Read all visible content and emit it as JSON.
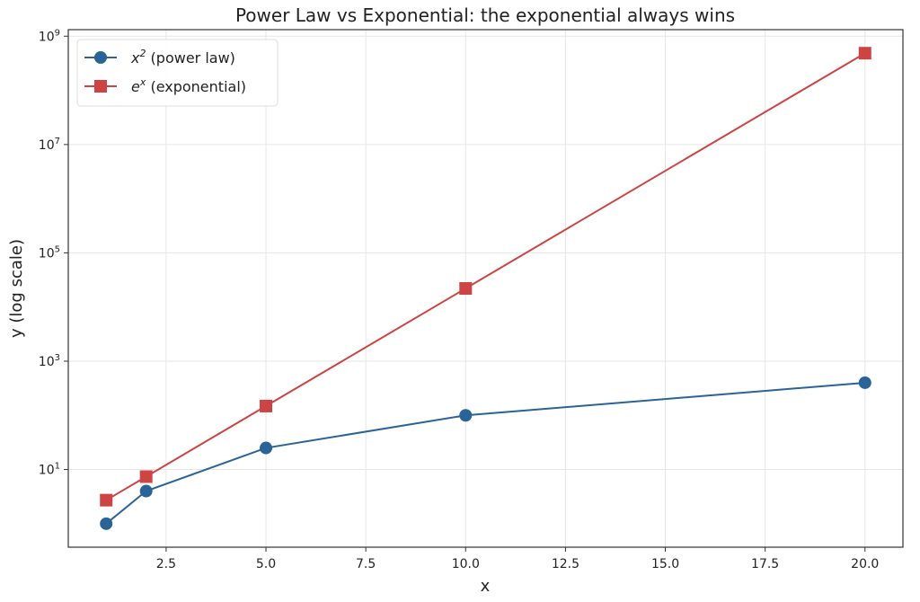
{
  "chart_data": {
    "type": "line",
    "title": "Power Law vs Exponential: the exponential always wins",
    "xlabel": "x",
    "ylabel": "y  (log scale)",
    "x": [
      1,
      2,
      5,
      10,
      20
    ],
    "series": [
      {
        "name_base": "x",
        "name_sup": "2",
        "name_rest": " (power law)",
        "values": [
          1,
          4,
          25,
          100,
          400
        ],
        "color": "#2a6398",
        "marker": "circle"
      },
      {
        "name_base": "e",
        "name_sup": "x",
        "name_rest": " (exponential)",
        "values": [
          2.718,
          7.389,
          148.4,
          22026.5,
          485165195
        ],
        "color": "#cc4444",
        "marker": "square"
      }
    ],
    "xlim": [
      0.05,
      20.95
    ],
    "ylim": [
      0.368,
      1320000000.0
    ],
    "yscale": "log",
    "xticks": [
      2.5,
      5.0,
      7.5,
      10.0,
      12.5,
      15.0,
      17.5,
      20.0
    ],
    "xtick_labels": [
      "2.5",
      "5.0",
      "7.5",
      "10.0",
      "12.5",
      "15.0",
      "17.5",
      "20.0"
    ],
    "yticks": [
      1,
      3,
      5,
      7,
      9
    ],
    "ytick_base": "10",
    "ytick_exponents": [
      "1",
      "3",
      "5",
      "7",
      "9"
    ],
    "grid": true,
    "legend": "top-left"
  }
}
